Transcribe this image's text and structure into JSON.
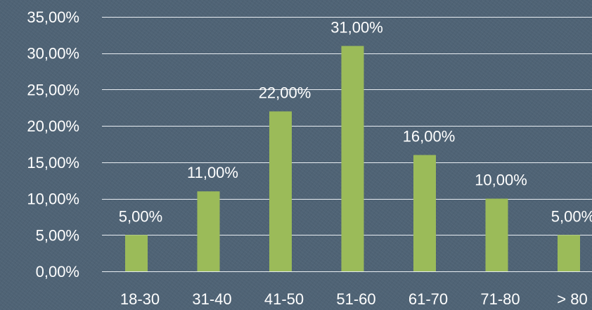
{
  "chart_data": {
    "type": "bar",
    "categories": [
      "18-30",
      "31-40",
      "41-50",
      "51-60",
      "61-70",
      "71-80",
      "> 80"
    ],
    "values": [
      5,
      11,
      22,
      31,
      16,
      10,
      5
    ],
    "data_labels": [
      "5,00%",
      "11,00%",
      "22,00%",
      "31,00%",
      "16,00%",
      "10,00%",
      "5,00%"
    ],
    "y_ticks": [
      0,
      5,
      10,
      15,
      20,
      25,
      30,
      35
    ],
    "y_tick_labels": [
      "0,00%",
      "5,00%",
      "10,00%",
      "15,00%",
      "20,00%",
      "25,00%",
      "30,00%",
      "35,00%"
    ],
    "ylim": [
      0,
      35
    ],
    "grid": true,
    "legend": "none",
    "bar_color": "#9bbb59",
    "title": "",
    "xlabel": "",
    "ylabel": ""
  }
}
